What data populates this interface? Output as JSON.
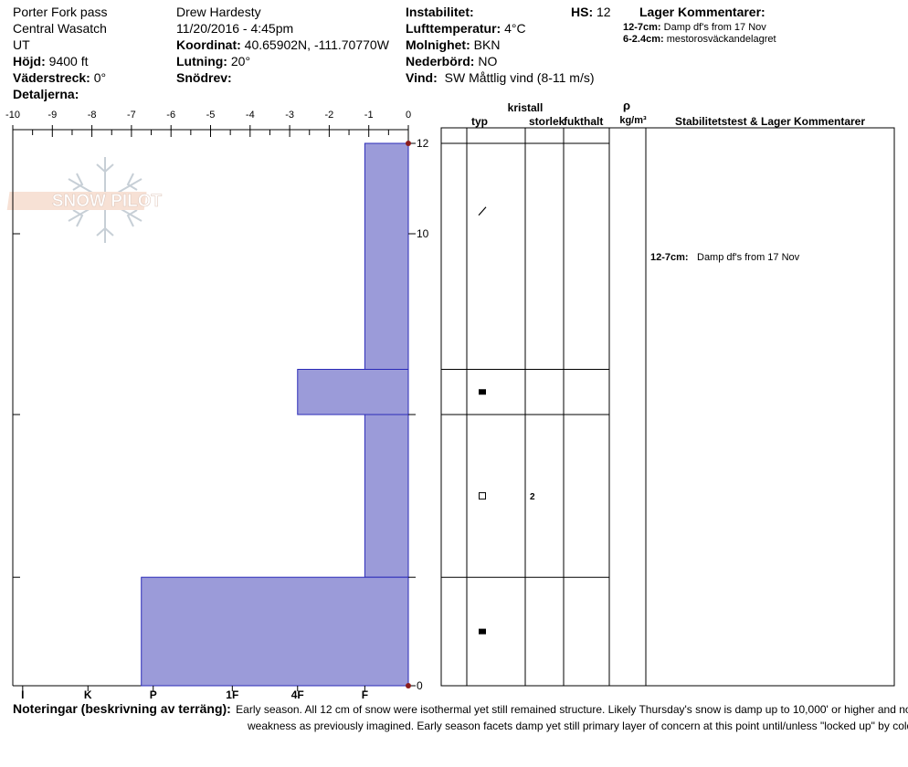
{
  "header": {
    "location": "Porter Fork pass",
    "range": "Central Wasatch",
    "state": "UT",
    "elevation_label": "Höjd:",
    "elevation": "9400 ft",
    "aspect_label": "Väderstreck:",
    "aspect": "0°",
    "details_label": "Detaljerna:",
    "observer": "Drew Hardesty",
    "datetime": "11/20/2016 - 4:45pm",
    "coord_label": "Koordinat:",
    "coord": "40.65902N, -111.70770W",
    "slope_label": "Lutning:",
    "slope": "20°",
    "drift_label": "Snödrev:",
    "instability_label": "Instabilitet:",
    "airtemp_label": "Lufttemperatur:",
    "airtemp": "4°C",
    "sky_label": "Molnighet:",
    "sky": "BKN",
    "precip_label": "Nederbörd:",
    "precip": "NO",
    "wind_label": "Vind:",
    "wind": "SW  Måttlig vind (8-11 m/s)",
    "hs_label": "HS:",
    "hs": "12",
    "layer_comments_label": "Lager Kommentarer:",
    "layer_comments": [
      {
        "range": "12-7cm:",
        "text": "Damp df's from 17 Nov"
      },
      {
        "range": "6-2.4cm:",
        "text": "mestorosväckandelagret"
      }
    ]
  },
  "logo": {
    "text": "SNOW PILOT"
  },
  "table_headers": {
    "typ": "typ",
    "kristall": "kristall",
    "storlek": "storlek",
    "fukthalt": "fukthalt",
    "rho": "ρ",
    "density_unit": "kg/m³",
    "stability": "Stabilitetstest & Lager Kommentarer"
  },
  "layer_symbols": [
    {
      "top": 12,
      "bottom": 7,
      "grain": "df-slash",
      "size": ""
    },
    {
      "top": 7,
      "bottom": 6,
      "grain": "filled-square",
      "size": ""
    },
    {
      "top": 6,
      "bottom": 2.4,
      "grain": "open-square",
      "size": "2"
    },
    {
      "top": 2.4,
      "bottom": 0,
      "grain": "filled-square",
      "size": ""
    }
  ],
  "stability_comments": [
    {
      "depth": 9.5,
      "range": "12-7cm:",
      "text": "Damp df's from 17 Nov"
    }
  ],
  "notes": {
    "label": "Noteringar (beskrivning av terräng):",
    "line1": "Early season.  All 12 cm of snow were isothermal yet still remained structure.  Likely Thursday's snow is damp up to 10,000' or higher and not as much of a",
    "line2": "weakness as previously imagined.  Early season facets damp yet still primary layer of concern at this point until/unless \"locked up\" by cold temperatures."
  },
  "chart_data": {
    "type": "bar",
    "orientation": "horizontal",
    "x_ticks_top": [
      "-10",
      "-9",
      "-8",
      "-7",
      "-6",
      "-5",
      "-4",
      "-3",
      "-2",
      "-1",
      "0"
    ],
    "hardness_ticks": [
      "I",
      "K",
      "P",
      "1F",
      "4F",
      "F"
    ],
    "xlim": [
      -10,
      0
    ],
    "ylim": [
      0,
      12
    ],
    "y_ticks_labeled": [
      "0",
      "10",
      "12"
    ],
    "y_tick_values": [
      0,
      2.4,
      6,
      10,
      12
    ],
    "y_markers": [
      0,
      12
    ],
    "layers": [
      {
        "top": 12,
        "bottom": 7,
        "hardness": "F"
      },
      {
        "top": 7,
        "bottom": 6,
        "hardness": "4F-"
      },
      {
        "top": 6,
        "bottom": 2.4,
        "hardness": "F"
      },
      {
        "top": 2.4,
        "bottom": 0,
        "hardness": "P"
      }
    ],
    "colors": {
      "fill": "#9b9bd9",
      "stroke": "#2b2bb8",
      "marker": "#8b1c1c"
    }
  }
}
